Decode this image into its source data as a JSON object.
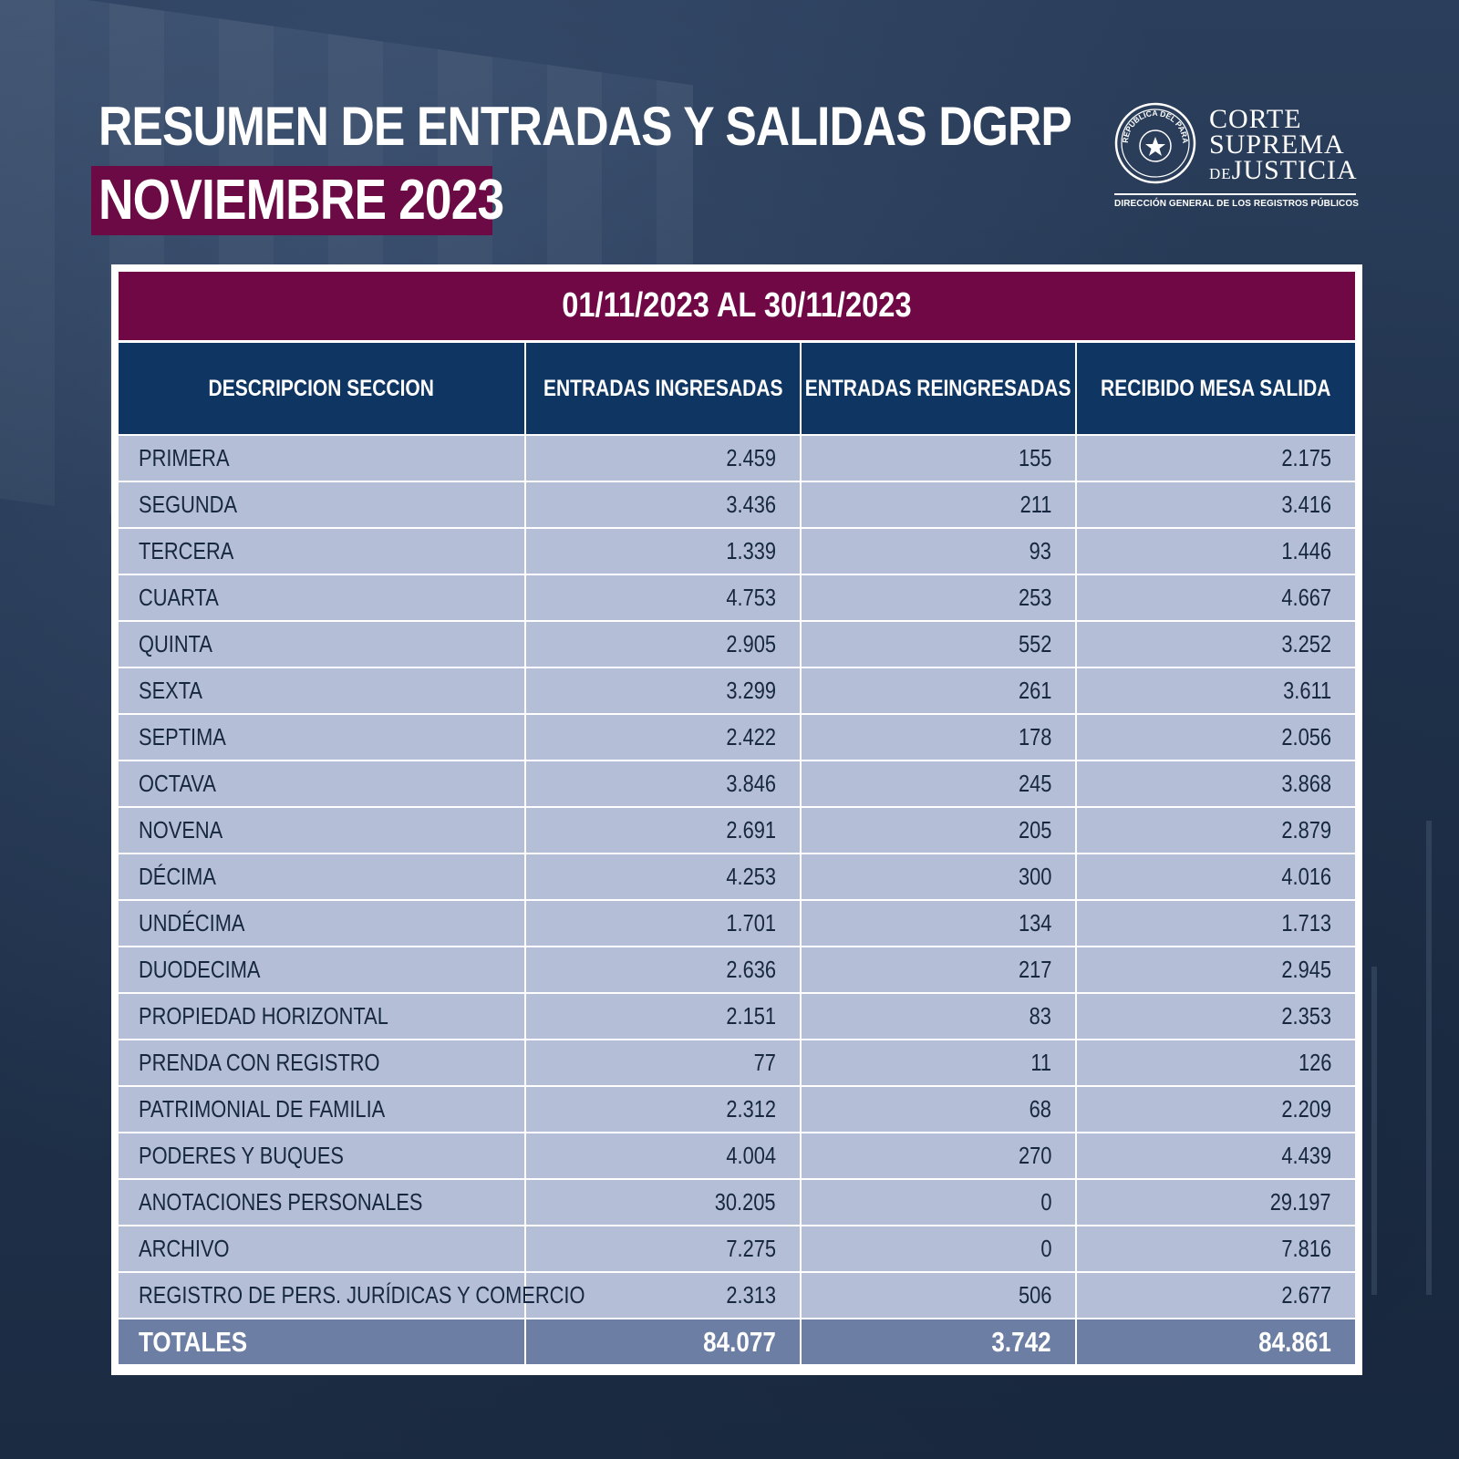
{
  "header": {
    "title_line1": "RESUMEN DE ENTRADAS Y SALIDAS DGRP",
    "title_line2": "NOVIEMBRE 2023"
  },
  "logo": {
    "seal_text": "REPÚBLICA DEL PARAGUAY",
    "line1": "CORTE",
    "line2": "SUPREMA",
    "line3_prefix": "DE",
    "line3": "JUSTICIA",
    "subtitle": "DIRECCIÓN GENERAL DE LOS REGISTROS PÚBLICOS"
  },
  "table": {
    "period": "01/11/2023 AL 30/11/2023",
    "columns": [
      "DESCRIPCION SECCION",
      "ENTRADAS INGRESADAS",
      "ENTRADAS REINGRESADAS",
      "RECIBIDO MESA SALIDA"
    ],
    "rows": [
      [
        "PRIMERA",
        "2.459",
        "155",
        "2.175"
      ],
      [
        "SEGUNDA",
        "3.436",
        "211",
        "3.416"
      ],
      [
        "TERCERA",
        "1.339",
        "93",
        "1.446"
      ],
      [
        "CUARTA",
        "4.753",
        "253",
        "4.667"
      ],
      [
        "QUINTA",
        "2.905",
        "552",
        "3.252"
      ],
      [
        "SEXTA",
        "3.299",
        "261",
        "3.611"
      ],
      [
        "SEPTIMA",
        "2.422",
        "178",
        "2.056"
      ],
      [
        "OCTAVA",
        "3.846",
        "245",
        "3.868"
      ],
      [
        "NOVENA",
        "2.691",
        "205",
        "2.879"
      ],
      [
        "DÉCIMA",
        "4.253",
        "300",
        "4.016"
      ],
      [
        "UNDÉCIMA",
        "1.701",
        "134",
        "1.713"
      ],
      [
        "DUODECIMA",
        "2.636",
        "217",
        "2.945"
      ],
      [
        "PROPIEDAD HORIZONTAL",
        "2.151",
        "83",
        "2.353"
      ],
      [
        "PRENDA CON REGISTRO",
        "77",
        "11",
        "126"
      ],
      [
        "PATRIMONIAL DE FAMILIA",
        "2.312",
        "68",
        "2.209"
      ],
      [
        "PODERES Y BUQUES",
        "4.004",
        "270",
        "4.439"
      ],
      [
        "ANOTACIONES PERSONALES",
        "30.205",
        "0",
        "29.197"
      ],
      [
        "ARCHIVO",
        "7.275",
        "0",
        "7.816"
      ],
      [
        "REGISTRO DE PERS. JURÍDICAS Y COMERCIO",
        "2.313",
        "506",
        "2.677"
      ]
    ],
    "totals": [
      "TOTALES",
      "84.077",
      "3.742",
      "84.861"
    ]
  },
  "colors": {
    "background": "#24364f",
    "accent_maroon": "#6f0844",
    "header_navy": "#0f3662",
    "row_fill": "#b4bed6",
    "totals_fill": "#6c7ea3"
  }
}
